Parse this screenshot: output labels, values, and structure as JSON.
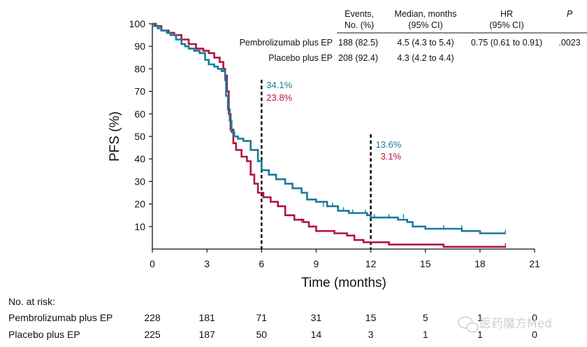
{
  "chart_data": {
    "type": "line",
    "subtype": "kaplan-meier",
    "xlabel": "Time (months)",
    "ylabel": "PFS (%)",
    "xlim": [
      0,
      21
    ],
    "ylim": [
      0,
      100
    ],
    "xticks": [
      0,
      3,
      6,
      9,
      12,
      15,
      18,
      21
    ],
    "yticks": [
      10,
      20,
      30,
      40,
      50,
      60,
      70,
      80,
      90,
      100
    ],
    "colors": {
      "pembro": "#1a7a9a",
      "placebo": "#b0173c"
    },
    "series": [
      {
        "name": "Pembrolizumab plus EP",
        "x": [
          0,
          0.1,
          0.3,
          0.5,
          0.8,
          1.0,
          1.3,
          1.6,
          1.8,
          2.0,
          2.3,
          2.6,
          2.9,
          3.1,
          3.4,
          3.6,
          3.8,
          4.0,
          4.05,
          4.15,
          4.25,
          4.35,
          4.5,
          4.7,
          5.0,
          5.4,
          5.8,
          6.0,
          6.4,
          6.8,
          7.3,
          7.7,
          8.2,
          8.5,
          9.0,
          9.6,
          10.2,
          10.8,
          11.2,
          11.8,
          12.0,
          12.6,
          13.2,
          13.5,
          14.0,
          14.3,
          15.0,
          16.0,
          17.0,
          18.0,
          19.0,
          19.4
        ],
        "y": [
          100,
          99,
          98,
          97,
          96,
          95,
          93,
          91,
          90,
          89,
          88,
          87,
          84,
          82,
          81,
          80,
          79,
          75,
          68,
          62,
          57,
          52,
          50,
          49,
          48,
          44,
          39,
          35,
          33,
          31,
          29,
          27,
          25,
          22,
          21,
          19,
          17,
          16,
          16,
          15,
          14,
          14,
          14,
          13,
          12,
          10,
          9,
          9,
          8,
          7,
          7,
          7
        ],
        "censor_x": [
          9.4,
          9.9,
          10.5,
          11.0,
          11.7,
          12.2,
          13.0,
          13.8,
          16.0,
          17.0,
          19.4
        ],
        "censor_y": [
          19,
          19,
          17,
          16,
          16,
          14,
          14,
          14,
          9,
          9,
          7
        ],
        "label_at_6": "34.1%",
        "label_at_12": "13.6%"
      },
      {
        "name": "Placebo plus EP",
        "x": [
          0,
          0.2,
          0.5,
          0.9,
          1.2,
          1.6,
          2.0,
          2.4,
          2.8,
          3.1,
          3.4,
          3.7,
          3.9,
          4.0,
          4.1,
          4.2,
          4.3,
          4.45,
          4.6,
          4.9,
          5.2,
          5.4,
          5.6,
          5.8,
          6.1,
          6.5,
          6.9,
          7.3,
          7.8,
          8.3,
          8.6,
          9.0,
          10.0,
          10.7,
          11.1,
          11.6,
          12.2,
          13.0,
          14.0,
          15.0,
          16.0,
          17.0,
          18.0,
          19.4
        ],
        "y": [
          100,
          99,
          97,
          96,
          95,
          93,
          91,
          89,
          88,
          87,
          85,
          83,
          80,
          77,
          70,
          60,
          53,
          47,
          44,
          41,
          39,
          33,
          29,
          25,
          23,
          21,
          19,
          15,
          13,
          12,
          10,
          8,
          7,
          6,
          4,
          3,
          3,
          2,
          2,
          2,
          1,
          1,
          1,
          1
        ],
        "censor_x": [
          8.2,
          8.6,
          19.4
        ],
        "censor_y": [
          12,
          10,
          1
        ],
        "label_at_6": "23.8%",
        "label_at_12": "3.1%"
      }
    ],
    "reference_lines": [
      6,
      12
    ],
    "table": {
      "headers": [
        "Events,\nNo. (%)",
        "Median, months\n(95% CI)",
        "HR\n(95% CI)",
        "P"
      ],
      "rows": [
        {
          "arm": "Pembrolizumab plus EP",
          "events": "188 (82.5)",
          "median": "4.5 (4.3 to 5.4)",
          "hr": "0.75 (0.61 to 0.91)",
          "p": ".0023"
        },
        {
          "arm": "Placebo plus EP",
          "events": "208 (92.4)",
          "median": "4.3 (4.2 to 4.4)",
          "hr": "",
          "p": ""
        }
      ]
    },
    "at_risk": {
      "title": "No. at risk:",
      "rows": [
        {
          "arm": "Pembrolizumab plus EP",
          "values": [
            "228",
            "181",
            "71",
            "31",
            "15",
            "5",
            "1",
            "0"
          ]
        },
        {
          "arm": "Placebo plus EP",
          "values": [
            "225",
            "187",
            "50",
            "14",
            "3",
            "1",
            "1",
            "0"
          ]
        }
      ]
    }
  },
  "watermark": "医药魔方Med"
}
